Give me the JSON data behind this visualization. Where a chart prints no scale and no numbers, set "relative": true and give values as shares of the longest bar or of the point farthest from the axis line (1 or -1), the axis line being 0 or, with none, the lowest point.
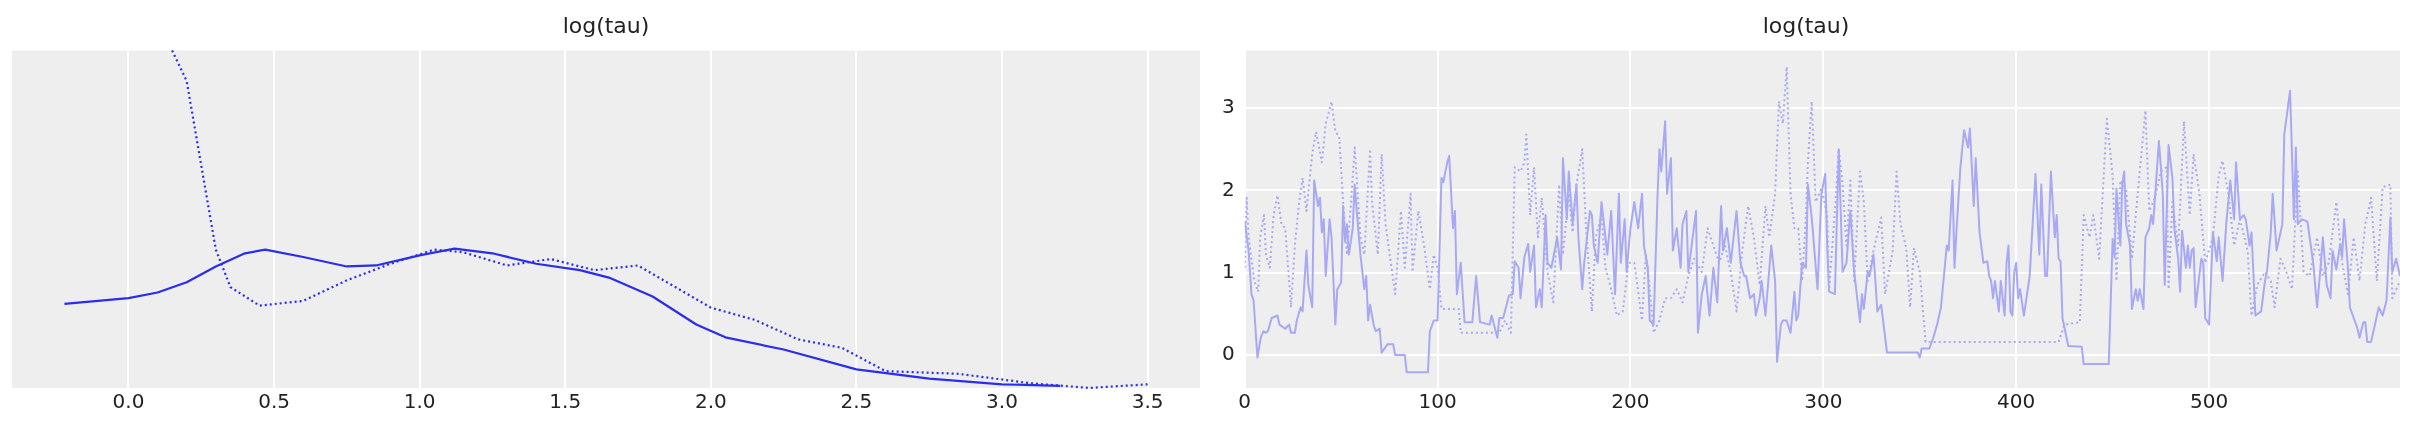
{
  "chart_data": [
    {
      "type": "line",
      "title": "log(tau)",
      "relative": true,
      "xlim": [
        -0.4,
        3.68
      ],
      "xticks": [
        {
          "value": 0,
          "label": "0.0"
        },
        {
          "value": 0.5,
          "label": "0.5"
        },
        {
          "value": 1,
          "label": "1.0"
        },
        {
          "value": 1.5,
          "label": "1.5"
        },
        {
          "value": 2,
          "label": "2.0"
        },
        {
          "value": 2.5,
          "label": "2.5"
        },
        {
          "value": 3,
          "label": "3.0"
        },
        {
          "value": 3.5,
          "label": "3.5"
        }
      ],
      "grid": "x",
      "series": [
        {
          "color": "#2a2eec",
          "line_style": "solid",
          "x": [
            -0.22,
            0,
            0.1,
            0.2,
            0.3,
            0.4,
            0.47,
            0.6,
            0.75,
            0.85,
            1,
            1.12,
            1.25,
            1.4,
            1.55,
            1.65,
            1.8,
            1.95,
            2.05,
            2.25,
            2.5,
            2.75,
            3,
            3.2
          ],
          "values": [
            0.249,
            0.266,
            0.283,
            0.313,
            0.36,
            0.399,
            0.41,
            0.388,
            0.36,
            0.363,
            0.393,
            0.413,
            0.399,
            0.368,
            0.349,
            0.327,
            0.271,
            0.188,
            0.15,
            0.114,
            0.055,
            0.028,
            0.011,
            0.006
          ]
        },
        {
          "color": "#2a2eec",
          "line_style": "dotted",
          "x": [
            0.15,
            0.2,
            0.25,
            0.3,
            0.35,
            0.45,
            0.6,
            0.75,
            0.9,
            1.05,
            1.15,
            1.3,
            1.45,
            1.6,
            1.75,
            1.85,
            2,
            2.15,
            2.3,
            2.45,
            2.6,
            2.85,
            3.1,
            3.3,
            3.5
          ],
          "values": [
            1,
            0.909,
            0.659,
            0.41,
            0.299,
            0.244,
            0.258,
            0.319,
            0.368,
            0.41,
            0.402,
            0.363,
            0.382,
            0.349,
            0.363,
            0.313,
            0.238,
            0.202,
            0.144,
            0.119,
            0.05,
            0.042,
            0.014,
            0,
            0.011
          ]
        }
      ]
    },
    {
      "type": "line",
      "title": "log(tau)",
      "xlim": [
        0,
        599
      ],
      "ylim": [
        -0.4,
        3.7
      ],
      "xticks": [
        0,
        100,
        200,
        300,
        400,
        500
      ],
      "yticks": [
        0,
        1,
        2,
        3
      ],
      "grid": true,
      "series": [
        {
          "color": "#a8a9f3",
          "line_style": "solid",
          "x": [
            0,
            2,
            3.5,
            4.6,
            6.6,
            8.3,
            9.7,
            11,
            12,
            14,
            17,
            18,
            21,
            23,
            24,
            26,
            27,
            29,
            30,
            32,
            33,
            35,
            36,
            38,
            39,
            40,
            41,
            42,
            44,
            45,
            47,
            48,
            50,
            51,
            52,
            53,
            54,
            56,
            57,
            59,
            60,
            62,
            63,
            64,
            65,
            67,
            68,
            70,
            71,
            74,
            77,
            78,
            83,
            84,
            95,
            96,
            98,
            100,
            102,
            103,
            105,
            106,
            108,
            109,
            110,
            112,
            114,
            118,
            120,
            122,
            127,
            128,
            131,
            132,
            134,
            137,
            139,
            140,
            142,
            143,
            145,
            147,
            148,
            150,
            151,
            153,
            154,
            156,
            157,
            159,
            162,
            164,
            165,
            167,
            168,
            170,
            172,
            173,
            175,
            176,
            178,
            179,
            180,
            181,
            183,
            185,
            186,
            188,
            190,
            192,
            194,
            195,
            197,
            198,
            200,
            202,
            204,
            206,
            207,
            209,
            210,
            212,
            214,
            215,
            216,
            218,
            219,
            221,
            222,
            224,
            226,
            227,
            229,
            230,
            232,
            234,
            235,
            237,
            239,
            241,
            243,
            245,
            247,
            248,
            250,
            252,
            254,
            255,
            257,
            259,
            260,
            262,
            264,
            265,
            267,
            268,
            270,
            273,
            275,
            276,
            278,
            279,
            281,
            283,
            285,
            286,
            287,
            289,
            291,
            292,
            294,
            297,
            299,
            301,
            302,
            303,
            306,
            308,
            310,
            312,
            314,
            316,
            319,
            320,
            321,
            323,
            324,
            326,
            327,
            328,
            330,
            333,
            349,
            350,
            351,
            355,
            357,
            359,
            361,
            364,
            365,
            367,
            368,
            369,
            371,
            373,
            375,
            376,
            378,
            379,
            381,
            383,
            385,
            386,
            387,
            388,
            389,
            391,
            392,
            394,
            395,
            396,
            397,
            398,
            399,
            400,
            401,
            402,
            404,
            407,
            410,
            412,
            413,
            415,
            416,
            418,
            420,
            421,
            422,
            423,
            424,
            427,
            434,
            435,
            448,
            450,
            451,
            452,
            454,
            455,
            456,
            457,
            459,
            460,
            462,
            463,
            464,
            466,
            467,
            469,
            470,
            471,
            474,
            476,
            477,
            479,
            481,
            482,
            484,
            485,
            486,
            488,
            489,
            490,
            491,
            492,
            493,
            496,
            497,
            498,
            500,
            502,
            504,
            505,
            507,
            509,
            511,
            513,
            514,
            516,
            518,
            519,
            521,
            522,
            524,
            527,
            529,
            530,
            532,
            533,
            535,
            538,
            539,
            542,
            544,
            545,
            546,
            548,
            551,
            554,
            556,
            558,
            559,
            561,
            563,
            564,
            566,
            568,
            569,
            570,
            572,
            573,
            575,
            577,
            578,
            580,
            581,
            582,
            584,
            586,
            588,
            590,
            592,
            594,
            595,
            597,
            599
          ],
          "values": [
            1.62,
            1.27,
            0.74,
            0.66,
            -0.03,
            0.21,
            0.29,
            0.27,
            0.29,
            0.45,
            0.48,
            0.37,
            0.32,
            0.37,
            0.27,
            0.27,
            0.42,
            0.58,
            0.53,
            1.27,
            0.85,
            0.58,
            2.12,
            1.81,
            1.91,
            1.49,
            1.65,
            0.96,
            1.65,
            1.43,
            0.37,
            0.8,
            0.88,
            1.81,
            1.38,
            1.59,
            1.22,
            1.54,
            2.07,
            1.49,
            1.22,
            0.8,
            0.96,
            0.42,
            0.61,
            0.35,
            0.29,
            0.32,
            0.03,
            0.13,
            0.13,
            0,
            0,
            -0.21,
            -0.21,
            0.29,
            0.42,
            0.42,
            2.15,
            2.1,
            2.34,
            2.42,
            1.54,
            1.75,
            0.74,
            1.12,
            0.4,
            0.4,
            0.96,
            0.4,
            0.37,
            0.48,
            0.21,
            0.45,
            0.45,
            0.72,
            0.74,
            1.14,
            1.06,
            0.69,
            1.19,
            1.35,
            1.01,
            1.33,
            0.58,
            0.8,
            0.58,
            1.7,
            1.12,
            1.06,
            1.43,
            1.04,
            2.39,
            1.65,
            2.23,
            1.59,
            2.07,
            1.43,
            0.8,
            1.12,
            1.54,
            1.75,
            1.7,
            1.33,
            1.12,
            1.86,
            1.65,
            1.22,
            1.75,
            0.74,
            1.96,
            1.12,
            1.65,
            1.01,
            1.54,
            1.86,
            1.54,
            1.96,
            1.33,
            1.06,
            0.42,
            0.37,
            1.91,
            2.5,
            2.23,
            2.84,
            1.96,
            2.39,
            1.27,
            1.54,
            1.06,
            1.59,
            1.75,
            1.01,
            1.38,
            1.75,
            0.27,
            0.74,
            0.96,
            0.48,
            1.06,
            0.64,
            1.81,
            1.27,
            1.54,
            1.12,
            1.54,
            1.75,
            1.12,
            0.96,
            0.96,
            0.69,
            0.74,
            0.48,
            0.69,
            0.9,
            0.48,
            1.33,
            0.9,
            -0.08,
            0.37,
            0.42,
            0.42,
            0.27,
            0.77,
            0.42,
            0.48,
            1.12,
            1.06,
            2.07,
            1.67,
            0.8,
            1.96,
            2.2,
            1.33,
            0.77,
            0.74,
            2.5,
            1.01,
            1.12,
            1.75,
            1.01,
            0.4,
            0.74,
            0.56,
            1.01,
            0.96,
            1.22,
            0.9,
            0.53,
            0.61,
            0.03,
            0.03,
            -0.03,
            0.08,
            0.08,
            0.21,
            0.37,
            0.58,
            1.33,
            1.27,
            2.12,
            1.06,
            1.49,
            2.26,
            2.73,
            2.52,
            2.75,
            1.81,
            2.39,
            1.49,
            1.12,
            1.14,
            0.96,
            0.9,
            0.69,
            0.9,
            0.53,
            0.9,
            0.48,
            1.12,
            1.33,
            0.53,
            0.48,
            1.01,
            1.12,
            0.69,
            0.8,
            0.48,
            0.96,
            2.2,
            1.22,
            2.07,
            0.96,
            0.96,
            2.23,
            1.43,
            1.7,
            1.17,
            1.14,
            0.45,
            0.11,
            0.1,
            -0.11,
            -0.11,
            1.41,
            1.19,
            2.02,
            1.33,
            2.07,
            2.23,
            1.59,
            1.33,
            0.56,
            0.8,
            0.66,
            0.8,
            0.56,
            1.43,
            1.54,
            1.7,
            1.59,
            2.6,
            1.96,
            0.85,
            2.55,
            2.15,
            1.54,
            1.17,
            0.77,
            1.51,
            1.06,
            1.33,
            1.06,
            1.27,
            1.3,
            0.58,
            1.17,
            1.12,
            0.45,
            0.37,
            1.49,
            1.14,
            1.43,
            0.9,
            1.62,
            2.12,
            1.65,
            2.34,
            1.65,
            1.7,
            1.65,
            1.33,
            1.49,
            0.48,
            0.53,
            0.9,
            1.01,
            1.49,
            1.96,
            1.27,
            1.59,
            2.68,
            3.21,
            1.65,
            2.52,
            1.59,
            1.65,
            1.62,
            1.12,
            0.58,
            1.12,
            1.43,
            0.85,
            0.69,
            1.27,
            1.04,
            1.35,
            1.19,
            1.65,
            1.06,
            0.58,
            0.45,
            0.32,
            0.21,
            0.4,
            0.4,
            0.16,
            0.16,
            0.37,
            0.58,
            0.48,
            0.66,
            1.67,
            1.01,
            1.17,
            0.96
          ]
        },
        {
          "color": "#a8a9f3",
          "line_style": "dotted",
          "x": [
            0,
            1,
            2,
            5,
            7,
            8,
            10,
            11,
            13,
            15,
            17,
            19,
            21,
            24,
            26,
            28,
            30,
            32,
            35,
            37,
            40,
            42,
            45,
            47,
            49,
            51,
            53,
            55,
            57,
            59,
            60,
            62,
            65,
            66,
            69,
            71,
            73,
            78,
            81,
            83,
            86,
            87,
            90,
            93,
            96,
            98,
            100,
            102,
            111,
            112,
            132,
            135,
            138,
            140,
            143,
            145,
            146,
            148,
            150,
            152,
            154,
            157,
            160,
            163,
            165,
            168,
            170,
            172,
            175,
            177,
            180,
            182,
            185,
            187,
            190,
            193,
            196,
            199,
            202,
            206,
            208,
            210,
            212,
            215,
            218,
            221,
            224,
            227,
            230,
            233,
            237,
            240,
            243,
            246,
            249,
            252,
            255,
            258,
            261,
            264,
            267,
            270,
            272,
            275,
            277,
            279,
            281,
            283,
            285,
            287,
            289,
            291,
            292,
            294,
            296,
            299,
            302,
            303,
            306,
            308,
            310,
            312,
            314,
            316,
            319,
            321,
            323,
            326,
            330,
            332,
            336,
            338,
            340,
            343,
            345,
            347,
            350,
            353,
            422,
            425,
            433,
            435,
            438,
            440,
            443,
            445,
            447,
            450,
            452,
            454,
            457,
            460,
            463,
            467,
            469,
            472,
            475,
            478,
            479,
            481,
            484,
            487,
            490,
            492,
            495,
            498,
            502,
            505,
            507,
            510,
            513,
            516,
            520,
            522,
            525,
            529,
            532,
            534,
            537,
            540,
            543,
            546,
            549,
            552,
            556,
            559,
            562,
            566,
            569,
            572,
            575,
            578,
            581,
            584,
            587,
            590,
            594,
            595,
            599
          ],
          "values": [
            1.06,
            1.91,
            1.43,
            0.9,
            0.77,
            1.43,
            1.7,
            1.22,
            1.06,
            1.7,
            1.94,
            1.59,
            1.54,
            0.58,
            1.33,
            1.81,
            2.15,
            1.75,
            2.44,
            2.71,
            2.34,
            2.81,
            3.08,
            2.71,
            2.66,
            1.86,
            1.22,
            1.81,
            2.52,
            1.81,
            1.43,
            1.22,
            2.5,
            1.86,
            1.22,
            2.44,
            1.59,
            0.74,
            1.75,
            1.06,
            1.96,
            1.01,
            1.75,
            1.33,
            0.8,
            1.22,
            1.06,
            0.56,
            0.56,
            0.27,
            0.27,
            0.42,
            0.27,
            2.28,
            2.23,
            2.34,
            2.68,
            1.7,
            2.28,
            1.43,
            1.91,
            1.01,
            0.64,
            2.07,
            1.22,
            1.96,
            1.49,
            2.07,
            2.5,
            1.54,
            0.53,
            1.43,
            1.7,
            1.06,
            0.8,
            0.48,
            0.53,
            1.12,
            1.12,
            0.42,
            1.22,
            0.8,
            0.27,
            0.42,
            0.69,
            0.69,
            0.8,
            0.64,
            0.96,
            1.17,
            1.01,
            1.54,
            1.33,
            1.12,
            1.33,
            1.01,
            0.53,
            1.27,
            1.81,
            1.43,
            0.85,
            1.81,
            1.43,
            1.96,
            3.08,
            2.81,
            3.5,
            1.96,
            1.54,
            1.54,
            0.9,
            1.7,
            2.34,
            3.08,
            1.86,
            2.02,
            1.7,
            0.8,
            1.75,
            2.5,
            2.07,
            1.33,
            2.12,
            0.9,
            2.23,
            1.86,
            0.9,
            1.27,
            1.67,
            0.74,
            1.27,
            2.23,
            1.59,
            1.3,
            0.58,
            1.3,
            1.01,
            0.16,
            0.16,
            0.37,
            0.4,
            1.7,
            1.43,
            1.7,
            1.17,
            2.02,
            2.87,
            2.18,
            0.9,
            2.12,
            2.02,
            1.17,
            1.96,
            2.97,
            1.75,
            1.91,
            2.23,
            2.28,
            0.8,
            1.86,
            1.33,
            2.84,
            1.7,
            2.44,
            1.96,
            1.12,
            1.43,
            2.18,
            2.36,
            1.96,
            1.33,
            1.65,
            1.27,
            0.48,
            0.85,
            1.01,
            0.9,
            0.58,
            1.17,
            1.01,
            0.8,
            2.23,
            1.01,
            0.96,
            1.43,
            0.96,
            1.12,
            1.86,
            1.12,
            0.74,
            1.43,
            0.9,
            1.59,
            1.91,
            0.9,
            2.04,
            2.07,
            0.69,
            0.9
          ]
        }
      ]
    }
  ]
}
